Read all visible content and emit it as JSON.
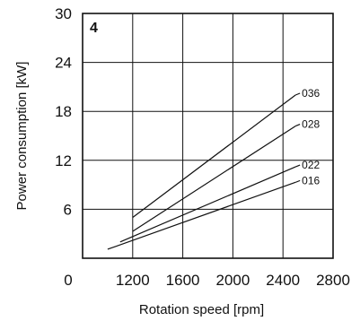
{
  "chart_data": {
    "type": "line",
    "panel_label": "4",
    "xlabel": "Rotation speed [rpm]",
    "ylabel": "Power consumption [kW]",
    "xlim": [
      800,
      2800
    ],
    "ylim": [
      0,
      30
    ],
    "x_ticks": [
      "0",
      "1200",
      "1600",
      "2000",
      "2400",
      "2800"
    ],
    "y_ticks": [
      "6",
      "12",
      "18",
      "24",
      "30"
    ],
    "grid": true,
    "legend": "labels at line ends (right)",
    "series": [
      {
        "name": "036",
        "x": [
          1200,
          2500
        ],
        "y": [
          5.0,
          20.0
        ]
      },
      {
        "name": "028",
        "x": [
          1200,
          2500
        ],
        "y": [
          3.3,
          16.2
        ]
      },
      {
        "name": "022",
        "x": [
          1100,
          2500
        ],
        "y": [
          2.0,
          11.2
        ]
      },
      {
        "name": "016",
        "x": [
          1000,
          2500
        ],
        "y": [
          1.1,
          9.3
        ]
      }
    ],
    "colors": {
      "line": "#111111",
      "grid": "#111111",
      "background": "#ffffff"
    }
  }
}
